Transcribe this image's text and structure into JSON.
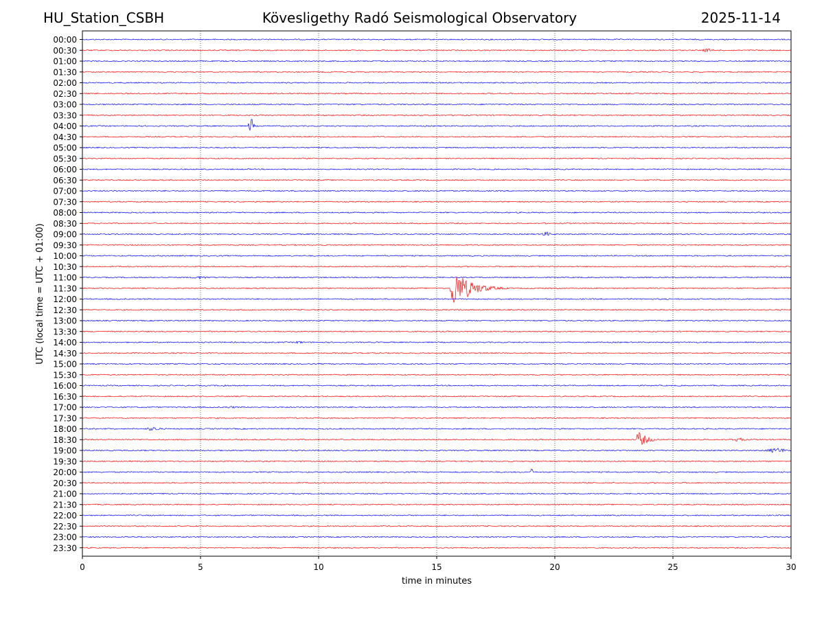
{
  "header": {
    "station": "HU_Station_CSBH",
    "title": "Kövesligethy Radó Seismological Observatory",
    "date": "2025-11-14"
  },
  "chart_data": {
    "type": "line",
    "title": "Kövesligethy Radó Seismological Observatory",
    "xlabel": "time in minutes",
    "ylabel": "UTC (local time = UTC + 01:00)",
    "xlim": [
      0,
      30
    ],
    "x_ticks": [
      0,
      5,
      10,
      15,
      20,
      25,
      30
    ],
    "grid": "vertical dotted lines at 5-minute ticks",
    "colors": [
      "#0000ff",
      "#ff0000"
    ],
    "rows": [
      "00:00",
      "00:30",
      "01:00",
      "01:30",
      "02:00",
      "02:30",
      "03:00",
      "03:30",
      "04:00",
      "04:30",
      "05:00",
      "05:30",
      "06:00",
      "06:30",
      "07:00",
      "07:30",
      "08:00",
      "08:30",
      "09:00",
      "09:30",
      "10:00",
      "10:30",
      "11:00",
      "11:30",
      "12:00",
      "12:30",
      "13:00",
      "13:30",
      "14:00",
      "14:30",
      "15:00",
      "15:30",
      "16:00",
      "16:30",
      "17:00",
      "17:30",
      "18:00",
      "18:30",
      "19:00",
      "19:30",
      "20:00",
      "20:30",
      "21:00",
      "21:30",
      "22:00",
      "22:30",
      "23:00",
      "23:30"
    ],
    "events": [
      {
        "row": "00:30",
        "start": 26.1,
        "end": 26.9,
        "amplitude": 2.5,
        "shape": "burst"
      },
      {
        "row": "04:00",
        "start": 7.0,
        "end": 7.3,
        "amplitude": 11,
        "shape": "burst"
      },
      {
        "row": "09:00",
        "start": 19.35,
        "end": 19.9,
        "amplitude": 3.5,
        "shape": "burst"
      },
      {
        "row": "11:00",
        "start": 4.4,
        "end": 5.6,
        "amplitude": 2,
        "shape": "burst"
      },
      {
        "row": "11:30",
        "start": 15.55,
        "end": 19.5,
        "amplitude": 30,
        "shape": "quake"
      },
      {
        "row": "14:00",
        "start": 8.9,
        "end": 9.5,
        "amplitude": 1.8,
        "shape": "burst"
      },
      {
        "row": "16:00",
        "start": 5.8,
        "end": 6.2,
        "amplitude": 2,
        "shape": "burst"
      },
      {
        "row": "17:00",
        "start": 5.8,
        "end": 6.8,
        "amplitude": 1.5,
        "shape": "burst"
      },
      {
        "row": "18:00",
        "start": 2.6,
        "end": 3.4,
        "amplitude": 3,
        "shape": "burst"
      },
      {
        "row": "18:30",
        "start": 23.45,
        "end": 25.4,
        "amplitude": 14,
        "shape": "quake"
      },
      {
        "row": "18:30",
        "start": 27.65,
        "end": 28.7,
        "amplitude": 8,
        "shape": "quake"
      },
      {
        "row": "19:00",
        "start": 28.8,
        "end": 30.0,
        "amplitude": 3.5,
        "shape": "burst"
      },
      {
        "row": "20:00",
        "start": 18.95,
        "end": 19.1,
        "amplitude": 5,
        "shape": "burst"
      }
    ]
  }
}
